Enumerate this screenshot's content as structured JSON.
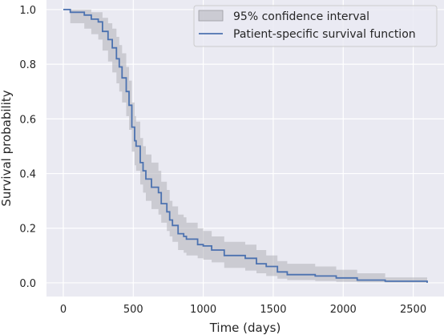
{
  "chart_data": {
    "type": "line",
    "title": "",
    "xlabel": "Time (days)",
    "ylabel": "Survival probability",
    "xlim": [
      -120,
      2720
    ],
    "ylim": [
      -0.05,
      1.035
    ],
    "xticks": [
      0,
      500,
      1000,
      1500,
      2000,
      2500
    ],
    "yticks": [
      0.0,
      0.2,
      0.4,
      0.6,
      0.8,
      1.0
    ],
    "xtick_labels": [
      "0",
      "500",
      "1000",
      "1500",
      "2000",
      "2500"
    ],
    "ytick_labels": [
      "0.0",
      "0.2",
      "0.4",
      "0.6",
      "0.8",
      "1.0"
    ],
    "grid": true,
    "legend_position": "top-right",
    "colors": {
      "background": "#eaeaf2",
      "grid": "#ffffff",
      "line": "#4c72b0",
      "band": "#b0b0b8"
    },
    "series": [
      {
        "name": "Patient-specific survival function",
        "kind": "step-line",
        "x": [
          0,
          50,
          150,
          200,
          250,
          280,
          320,
          350,
          380,
          400,
          420,
          450,
          470,
          490,
          510,
          520,
          550,
          570,
          590,
          630,
          680,
          700,
          740,
          760,
          780,
          820,
          860,
          880,
          960,
          1000,
          1060,
          1150,
          1300,
          1380,
          1450,
          1530,
          1600,
          1800,
          1950,
          2100,
          2300,
          2600
        ],
        "y": [
          1.0,
          0.99,
          0.98,
          0.965,
          0.955,
          0.92,
          0.89,
          0.86,
          0.82,
          0.79,
          0.75,
          0.7,
          0.65,
          0.57,
          0.52,
          0.5,
          0.44,
          0.41,
          0.38,
          0.35,
          0.33,
          0.29,
          0.26,
          0.23,
          0.21,
          0.18,
          0.17,
          0.16,
          0.14,
          0.135,
          0.12,
          0.1,
          0.09,
          0.07,
          0.06,
          0.04,
          0.03,
          0.025,
          0.018,
          0.01,
          0.006,
          0.0
        ]
      },
      {
        "name": "95% confidence interval",
        "kind": "band",
        "x": [
          0,
          50,
          150,
          200,
          250,
          280,
          320,
          350,
          380,
          400,
          420,
          450,
          470,
          490,
          510,
          520,
          550,
          570,
          590,
          630,
          680,
          700,
          740,
          760,
          780,
          820,
          860,
          880,
          960,
          1000,
          1060,
          1150,
          1300,
          1380,
          1450,
          1530,
          1600,
          1800,
          1950,
          2100,
          2300,
          2600
        ],
        "lower": [
          1.0,
          0.95,
          0.93,
          0.91,
          0.89,
          0.85,
          0.81,
          0.77,
          0.73,
          0.7,
          0.66,
          0.61,
          0.56,
          0.48,
          0.43,
          0.41,
          0.36,
          0.33,
          0.3,
          0.27,
          0.25,
          0.22,
          0.19,
          0.17,
          0.15,
          0.12,
          0.11,
          0.1,
          0.09,
          0.085,
          0.075,
          0.055,
          0.045,
          0.035,
          0.025,
          0.015,
          0.01,
          0.007,
          0.004,
          0.002,
          0.001,
          0.0
        ],
        "upper": [
          1.0,
          1.0,
          1.0,
          0.99,
          0.99,
          0.97,
          0.95,
          0.93,
          0.9,
          0.87,
          0.84,
          0.79,
          0.74,
          0.66,
          0.61,
          0.59,
          0.53,
          0.5,
          0.47,
          0.44,
          0.41,
          0.37,
          0.34,
          0.3,
          0.28,
          0.25,
          0.24,
          0.22,
          0.2,
          0.19,
          0.17,
          0.15,
          0.14,
          0.12,
          0.1,
          0.08,
          0.07,
          0.06,
          0.048,
          0.035,
          0.02,
          0.0
        ]
      }
    ]
  }
}
